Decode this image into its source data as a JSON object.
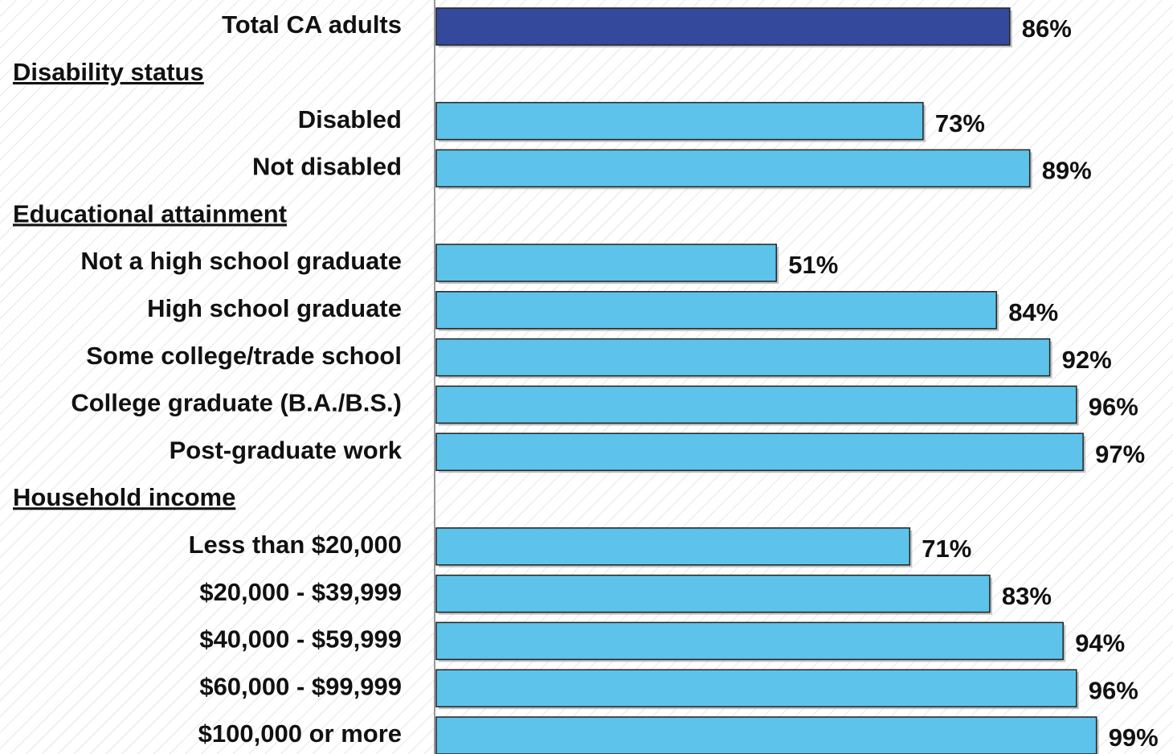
{
  "chart_data": {
    "type": "bar",
    "orientation": "horizontal",
    "xlim": [
      0,
      100
    ],
    "groups": [
      {
        "name": null,
        "color": "#34499b",
        "categories": [
          "Total CA adults"
        ],
        "values": [
          86
        ],
        "value_labels": [
          "86%"
        ]
      },
      {
        "name": "Disability status",
        "color": "#5ec3ea",
        "categories": [
          "Disabled",
          "Not disabled"
        ],
        "values": [
          73,
          89
        ],
        "value_labels": [
          "73%",
          "89%"
        ]
      },
      {
        "name": "Educational attainment",
        "color": "#5ec3ea",
        "categories": [
          "Not a high school graduate",
          "High school graduate",
          "Some college/trade school",
          "College graduate (B.A./B.S.)",
          "Post-graduate work"
        ],
        "values": [
          51,
          84,
          92,
          96,
          97
        ],
        "value_labels": [
          "51%",
          "84%",
          "92%",
          "96%",
          "97%"
        ]
      },
      {
        "name": "Household income",
        "color": "#5ec3ea",
        "categories": [
          "Less than $20,000",
          "$20,000 - $39,999",
          "$40,000 - $59,999",
          "$60,000 - $99,999",
          "$100,000 or more"
        ],
        "values": [
          71,
          83,
          94,
          96,
          99
        ],
        "value_labels": [
          "71%",
          "83%",
          "94%",
          "96%",
          "99%"
        ]
      }
    ]
  }
}
